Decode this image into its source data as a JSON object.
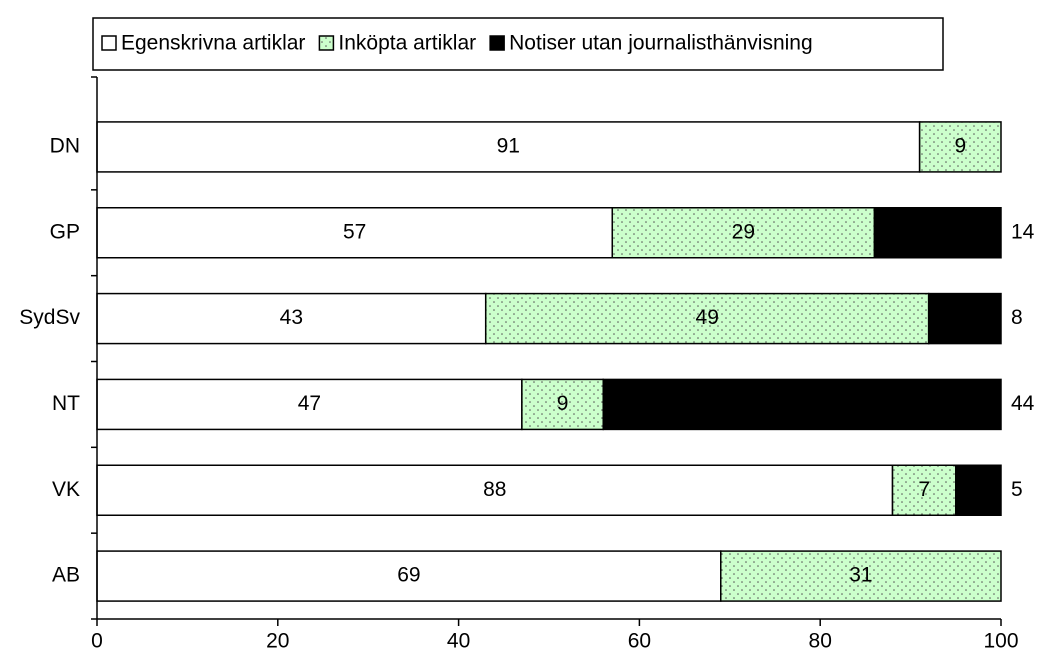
{
  "chart_data": {
    "type": "stacked-barh",
    "categories": [
      "DN",
      "GP",
      "SydSv",
      "NT",
      "VK",
      "AB"
    ],
    "series": [
      {
        "name": "Egenskrivna artiklar",
        "color": "#ffffff",
        "values": [
          91,
          57,
          43,
          47,
          88,
          69
        ]
      },
      {
        "name": "Inköpta artiklar",
        "color": "#ccffcc",
        "hatch": "dots",
        "values": [
          9,
          29,
          49,
          9,
          7,
          31
        ]
      },
      {
        "name": "Notiser utan journalisthänvisning",
        "color": "#000000",
        "values": [
          0,
          14,
          8,
          44,
          5,
          0
        ]
      }
    ],
    "xlim": [
      0,
      100
    ],
    "xticks": [
      0,
      20,
      40,
      60,
      80,
      100
    ],
    "legend": "top"
  }
}
